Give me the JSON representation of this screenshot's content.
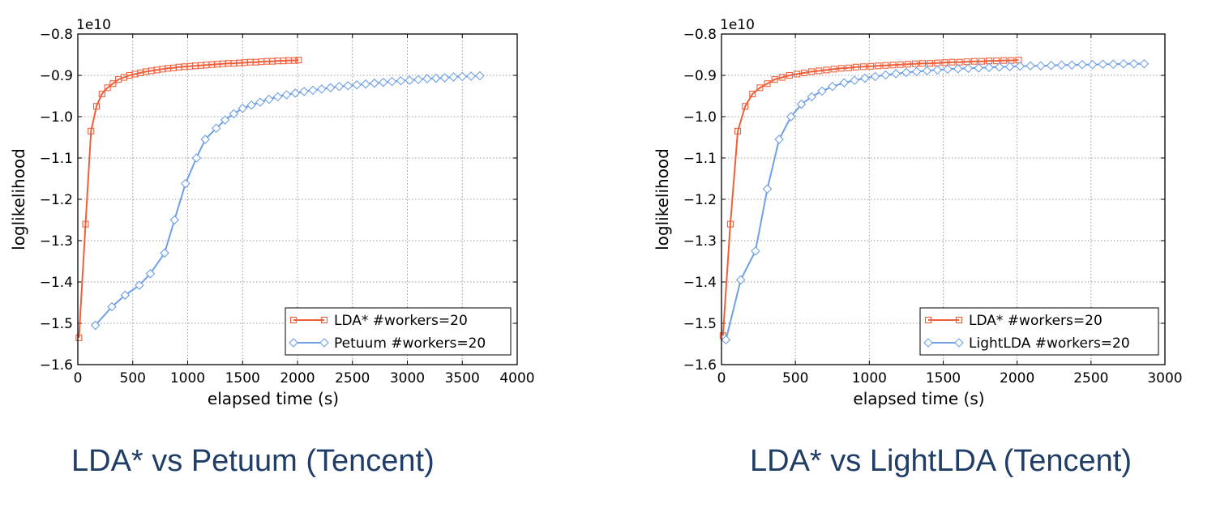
{
  "colors": {
    "lda": "#f05f3b",
    "other": "#6fa0e6"
  },
  "chart_data": [
    {
      "type": "line",
      "xlabel": "elapsed time (s)",
      "ylabel": "loglikelihood",
      "offset_label": "1e10",
      "xlim": [
        0,
        4000
      ],
      "ylim": [
        -1.6,
        -0.8
      ],
      "xticks": [
        "0",
        "500",
        "1000",
        "1500",
        "2000",
        "2500",
        "3000",
        "3500",
        "4000"
      ],
      "yticks": [
        "−0.8",
        "−0.9",
        "−1.0",
        "−1.1",
        "−1.2",
        "−1.3",
        "−1.4",
        "−1.5",
        "−1.6"
      ],
      "grid": true,
      "legend_position": "lower right",
      "series": [
        {
          "name": "LDA* #workers=20",
          "marker": "square",
          "color": "#f05f3b",
          "x": [
            10,
            70,
            120,
            170,
            220,
            270,
            320,
            370,
            420,
            470,
            520,
            570,
            620,
            670,
            720,
            770,
            820,
            870,
            920,
            970,
            1020,
            1070,
            1120,
            1170,
            1220,
            1270,
            1320,
            1370,
            1420,
            1470,
            1520,
            1570,
            1620,
            1670,
            1720,
            1770,
            1820,
            1870,
            1920,
            1970,
            2010
          ],
          "y": [
            -1.535,
            -1.26,
            -1.035,
            -0.975,
            -0.945,
            -0.93,
            -0.92,
            -0.91,
            -0.905,
            -0.9,
            -0.897,
            -0.894,
            -0.891,
            -0.889,
            -0.887,
            -0.885,
            -0.883,
            -0.882,
            -0.88,
            -0.879,
            -0.878,
            -0.877,
            -0.876,
            -0.875,
            -0.874,
            -0.873,
            -0.872,
            -0.871,
            -0.871,
            -0.87,
            -0.869,
            -0.868,
            -0.868,
            -0.867,
            -0.866,
            -0.866,
            -0.865,
            -0.865,
            -0.864,
            -0.864,
            -0.863
          ]
        },
        {
          "name": "Petuum #workers=20",
          "marker": "diamond",
          "color": "#6fa0e6",
          "x": [
            160,
            310,
            430,
            560,
            660,
            790,
            880,
            980,
            1080,
            1160,
            1260,
            1340,
            1420,
            1500,
            1580,
            1660,
            1740,
            1820,
            1900,
            1980,
            2060,
            2140,
            2220,
            2300,
            2380,
            2460,
            2540,
            2620,
            2700,
            2780,
            2860,
            2940,
            3020,
            3100,
            3180,
            3260,
            3340,
            3420,
            3500,
            3580,
            3660
          ],
          "y": [
            -1.505,
            -1.46,
            -1.432,
            -1.408,
            -1.38,
            -1.33,
            -1.25,
            -1.162,
            -1.1,
            -1.055,
            -1.028,
            -1.008,
            -0.993,
            -0.98,
            -0.972,
            -0.965,
            -0.958,
            -0.952,
            -0.947,
            -0.943,
            -0.939,
            -0.936,
            -0.933,
            -0.93,
            -0.927,
            -0.925,
            -0.923,
            -0.921,
            -0.919,
            -0.917,
            -0.915,
            -0.913,
            -0.912,
            -0.91,
            -0.908,
            -0.907,
            -0.906,
            -0.904,
            -0.903,
            -0.902,
            -0.901
          ]
        }
      ]
    },
    {
      "type": "line",
      "xlabel": "elapsed time (s)",
      "ylabel": "loglikelihood",
      "offset_label": "1e10",
      "xlim": [
        0,
        3000
      ],
      "ylim": [
        -1.6,
        -0.8
      ],
      "xticks": [
        "0",
        "500",
        "1000",
        "1500",
        "2000",
        "2500",
        "3000"
      ],
      "yticks": [
        "−0.8",
        "−0.9",
        "−1.0",
        "−1.1",
        "−1.2",
        "−1.3",
        "−1.4",
        "−1.5",
        "−1.6"
      ],
      "grid": true,
      "legend_position": "lower right",
      "series": [
        {
          "name": "LDA* #workers=20",
          "marker": "square",
          "color": "#f05f3b",
          "x": [
            10,
            60,
            110,
            160,
            210,
            260,
            310,
            360,
            410,
            460,
            510,
            560,
            610,
            660,
            710,
            760,
            810,
            860,
            910,
            960,
            1010,
            1060,
            1110,
            1160,
            1210,
            1260,
            1310,
            1360,
            1410,
            1460,
            1510,
            1560,
            1610,
            1660,
            1710,
            1760,
            1810,
            1860,
            1910,
            1960,
            2010
          ],
          "y": [
            -1.53,
            -1.26,
            -1.035,
            -0.975,
            -0.945,
            -0.93,
            -0.92,
            -0.91,
            -0.905,
            -0.9,
            -0.897,
            -0.894,
            -0.891,
            -0.889,
            -0.887,
            -0.885,
            -0.883,
            -0.882,
            -0.88,
            -0.879,
            -0.878,
            -0.877,
            -0.876,
            -0.875,
            -0.874,
            -0.873,
            -0.872,
            -0.871,
            -0.871,
            -0.87,
            -0.869,
            -0.868,
            -0.868,
            -0.867,
            -0.866,
            -0.866,
            -0.865,
            -0.865,
            -0.864,
            -0.864,
            -0.863
          ]
        },
        {
          "name": "LightLDA #workers=20",
          "marker": "diamond",
          "color": "#6fa0e6",
          "x": [
            30,
            130,
            230,
            310,
            390,
            470,
            540,
            610,
            680,
            750,
            830,
            900,
            970,
            1040,
            1110,
            1180,
            1250,
            1320,
            1390,
            1460,
            1530,
            1600,
            1670,
            1740,
            1810,
            1880,
            1950,
            2020,
            2090,
            2160,
            2230,
            2300,
            2370,
            2440,
            2510,
            2580,
            2650,
            2720,
            2790,
            2860
          ],
          "y": [
            -1.54,
            -1.395,
            -1.325,
            -1.175,
            -1.055,
            -1.0,
            -0.97,
            -0.952,
            -0.938,
            -0.927,
            -0.918,
            -0.912,
            -0.907,
            -0.903,
            -0.899,
            -0.896,
            -0.893,
            -0.891,
            -0.889,
            -0.887,
            -0.885,
            -0.884,
            -0.883,
            -0.882,
            -0.881,
            -0.88,
            -0.879,
            -0.878,
            -0.877,
            -0.877,
            -0.876,
            -0.875,
            -0.875,
            -0.874,
            -0.874,
            -0.873,
            -0.873,
            -0.872,
            -0.872,
            -0.872
          ]
        }
      ]
    }
  ],
  "captions": [
    "LDA* vs Petuum (Tencent)",
    "LDA* vs LightLDA (Tencent)"
  ]
}
